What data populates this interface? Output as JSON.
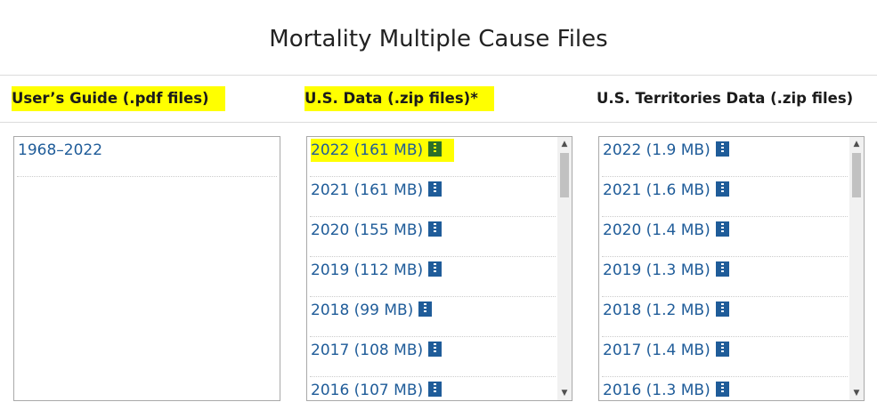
{
  "page_title": "Mortality Multiple Cause Files",
  "columns": {
    "guide": {
      "header": "User’s Guide (.pdf files)",
      "items": [
        "1968–2022"
      ]
    },
    "us": {
      "header": "U.S. Data (.zip files)*",
      "items": [
        "2022 (161 MB)",
        "2021 (161 MB)",
        "2020 (155 MB)",
        "2019 (112 MB)",
        "2018 (99 MB)",
        "2017 (108 MB)",
        "2016 (107 MB)"
      ]
    },
    "territories": {
      "header": "U.S. Territories Data (.zip files)",
      "items": [
        "2022 (1.9 MB)",
        "2021 (1.6 MB)",
        "2020 (1.4 MB)",
        "2019 (1.3 MB)",
        "2018 (1.2 MB)",
        "2017 (1.4 MB)",
        "2016 (1.3 MB)"
      ]
    }
  },
  "icons": {
    "zip": "zip-file-icon",
    "scroll_up": "▲",
    "scroll_down": "▼"
  },
  "colors": {
    "link": "#1f5c99",
    "highlight": "#ffff00"
  }
}
